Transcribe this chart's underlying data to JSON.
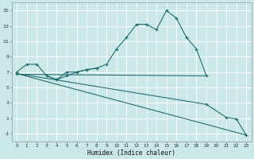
{
  "xlabel": "Humidex (Indice chaleur)",
  "bg_color": "#cae8e8",
  "grid_color": "#ffffff",
  "line_color": "#1e7070",
  "series1_x": [
    0,
    1,
    2,
    3,
    4,
    5,
    6,
    7,
    8,
    9,
    10,
    11,
    12,
    13,
    14,
    15,
    16,
    17,
    18,
    19
  ],
  "series1_y": [
    7,
    8,
    8,
    6.5,
    6,
    7,
    7,
    7.3,
    7.5,
    8,
    10,
    11.5,
    13.2,
    13.2,
    12.5,
    15,
    14,
    11.5,
    10,
    6.5
  ],
  "series2_x": [
    3,
    4,
    5,
    6,
    7,
    8
  ],
  "series2_y": [
    6.5,
    6,
    6.5,
    7,
    7.3,
    7.5
  ],
  "series3_x": [
    0,
    19
  ],
  "series3_y": [
    6.7,
    6.5
  ],
  "series4_x": [
    0,
    23
  ],
  "series4_y": [
    6.8,
    -1.2
  ],
  "series5_x": [
    0,
    19,
    21,
    22,
    23
  ],
  "series5_y": [
    6.8,
    2.8,
    1.1,
    0.9,
    -1.2
  ],
  "ylim": [
    -2,
    16
  ],
  "xlim": [
    -0.5,
    23.5
  ],
  "yticks": [
    -1,
    1,
    3,
    5,
    7,
    9,
    11,
    13,
    15
  ],
  "xticks": [
    0,
    1,
    2,
    3,
    4,
    5,
    6,
    7,
    8,
    9,
    10,
    11,
    12,
    13,
    14,
    15,
    16,
    17,
    18,
    19,
    20,
    21,
    22,
    23
  ]
}
